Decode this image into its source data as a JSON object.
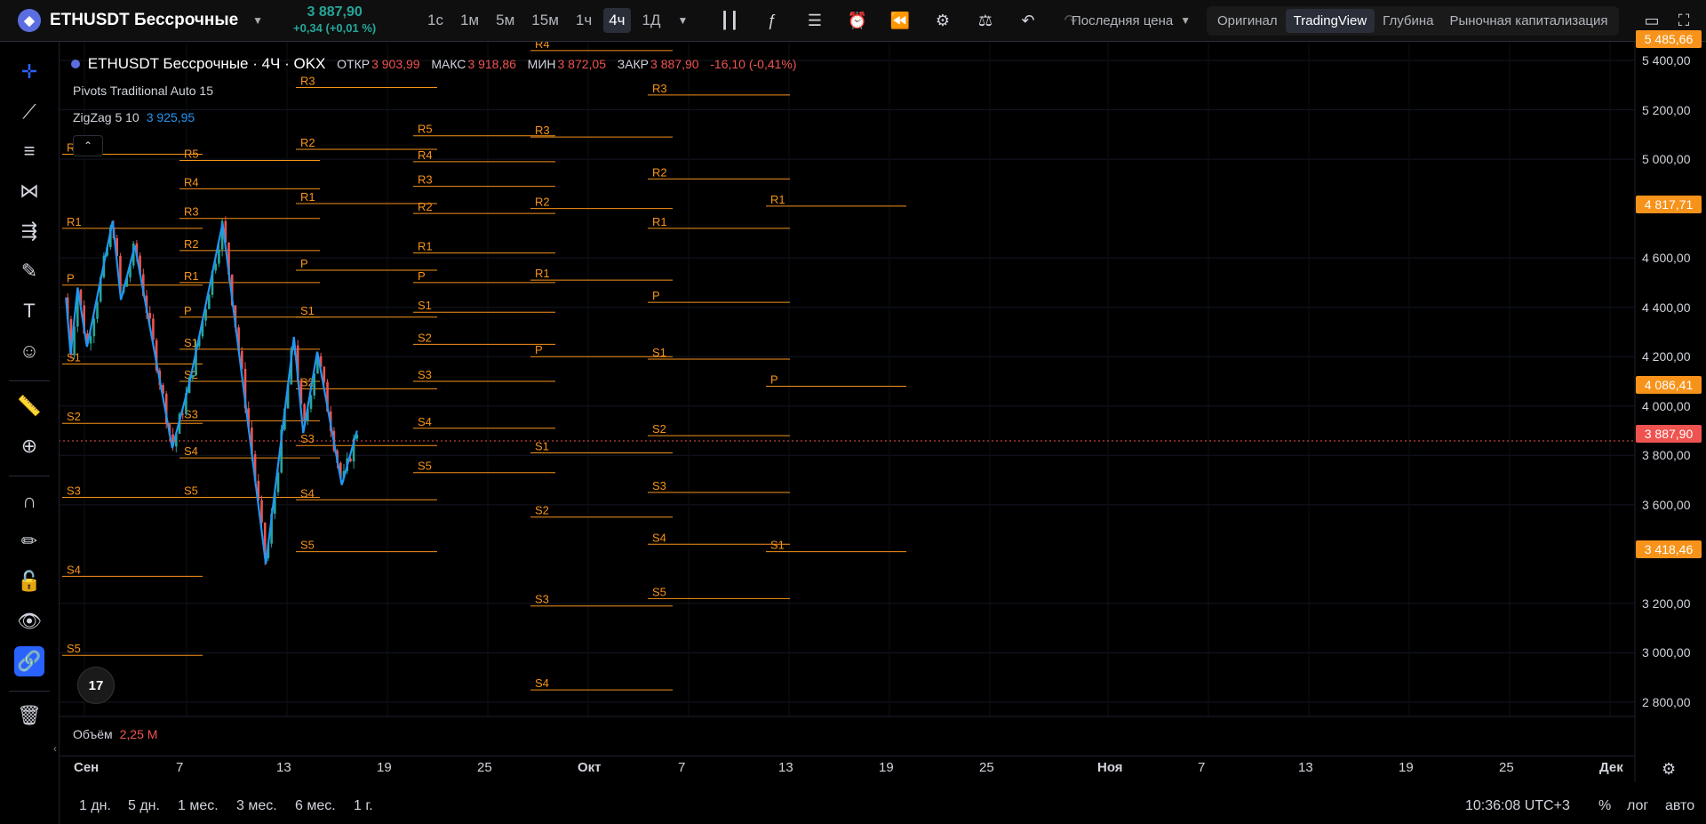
{
  "header": {
    "coin_icon": "ethereum-icon",
    "symbol": "ETHUSDT Бессрочные",
    "last_price": "3 887,90",
    "change": "+0,34 (+0,01 %)",
    "timeframes": [
      "1с",
      "1м",
      "5м",
      "15м",
      "1ч",
      "4ч",
      "1Д"
    ],
    "active_timeframe": "4ч",
    "price_select": "Последняя цена",
    "views": [
      "Оригинал",
      "TradingView",
      "Глубина",
      "Рыночная капитализация"
    ],
    "active_view": "TradingView"
  },
  "legend": {
    "title": "ETHUSDT Бессрочные · 4Ч · OKX",
    "open_label": "ОТКР",
    "open": "3 903,99",
    "high_label": "МАКС",
    "high": "3 918,86",
    "low_label": "МИН",
    "low": "3 872,05",
    "close_label": "ЗАКР",
    "close": "3 887,90",
    "change": "-16,10 (-0,41%)",
    "indicator1": "Pivots Traditional Auto 15",
    "indicator2_name": "ZigZag 5 10",
    "indicator2_value": "3 925,95"
  },
  "volume": {
    "label": "Объём",
    "value": "2,25 M"
  },
  "tv_logo": "17",
  "bottom": {
    "ranges": [
      "1 дн.",
      "5 дн.",
      "1 мес.",
      "3 мес.",
      "6 мес.",
      "1 г."
    ],
    "time": "10:36:08 UTC+3",
    "percent": "%",
    "log": "лог",
    "auto": "авто"
  },
  "colors": {
    "up": "#26a69a",
    "down": "#ef5350",
    "pivot": "#f7931a",
    "zigzag": "#2196f3",
    "accent": "#2962ff"
  },
  "chart_data": {
    "type": "candlestick",
    "y_ticks": [
      "5 400,00",
      "5 200,00",
      "5 000,00",
      "4 600,00",
      "4 400,00",
      "4 200,00",
      "4 000,00",
      "3 800,00",
      "3 600,00",
      "3 200,00",
      "3 000,00",
      "2 800,00"
    ],
    "x_ticks": [
      "Сен",
      "7",
      "13",
      "19",
      "25",
      "Окт",
      "7",
      "13",
      "19",
      "25",
      "Ноя",
      "7",
      "13",
      "19",
      "25",
      "Дек"
    ],
    "price_tags": [
      {
        "value": "5 485,66",
        "color": "#f7931a"
      },
      {
        "value": "4 817,71",
        "color": "#f7931a"
      },
      {
        "value": "4 086,41",
        "color": "#f7931a"
      },
      {
        "value": "3 887,90",
        "color": "#ef5350"
      },
      {
        "value": "3 418,46",
        "color": "#f7931a"
      }
    ],
    "pivot_periods": [
      {
        "levels": {
          "R2": 5020,
          "R1": 4720,
          "P": 4490,
          "S1": 4170,
          "S2": 3930,
          "S3": 3630,
          "S4": 3310,
          "S5": 2990
        }
      },
      {
        "levels": {
          "R5": 4995,
          "R4": 4880,
          "R3": 4760,
          "R2": 4630,
          "R1": 4500,
          "P": 4360,
          "S1": 4230,
          "S2": 4100,
          "S3": 3940,
          "S4": 3790,
          "S5": 3630
        }
      },
      {
        "levels": {
          "R3": 5290,
          "R2": 5040,
          "R1": 4820,
          "P": 4550,
          "S1": 4360,
          "S2": 4070,
          "S3": 3840,
          "S4": 3620,
          "S5": 3410
        }
      },
      {
        "levels": {
          "R5": 5095,
          "R4": 4990,
          "R3": 4890,
          "R2": 4780,
          "R1": 4620,
          "P": 4500,
          "S1": 4380,
          "S2": 4250,
          "S3": 4100,
          "S4": 3910,
          "S5": 3730
        }
      },
      {
        "levels": {
          "R4": 5440,
          "R3": 5090,
          "R2": 4800,
          "R1": 4510,
          "P": 4200,
          "S1": 3810,
          "S2": 3550,
          "S3": 3190,
          "S4": 2850
        }
      },
      {
        "levels": {
          "R3": 5260,
          "R2": 4920,
          "R1": 4720,
          "P": 4420,
          "S1": 4190,
          "S2": 3880,
          "S3": 3650,
          "S4": 3440,
          "S5": 3220
        }
      },
      {
        "levels": {
          "R2": 5480,
          "R1": 4810,
          "P": 4080,
          "S1": 3410
        }
      }
    ],
    "zigzag": [
      [
        4440,
        4440
      ],
      [
        4480,
        4210
      ],
      [
        4540,
        4480
      ],
      [
        4620,
        4240
      ],
      [
        4840,
        4750
      ],
      [
        4910,
        4430
      ],
      [
        5030,
        4650
      ],
      [
        5350,
        3830
      ],
      [
        5500,
        4100
      ],
      [
        5780,
        4740
      ],
      [
        6150,
        3360
      ],
      [
        6390,
        4280
      ],
      [
        6470,
        3890
      ],
      [
        6590,
        4220
      ],
      [
        6800,
        3680
      ],
      [
        6930,
        3900
      ]
    ]
  }
}
